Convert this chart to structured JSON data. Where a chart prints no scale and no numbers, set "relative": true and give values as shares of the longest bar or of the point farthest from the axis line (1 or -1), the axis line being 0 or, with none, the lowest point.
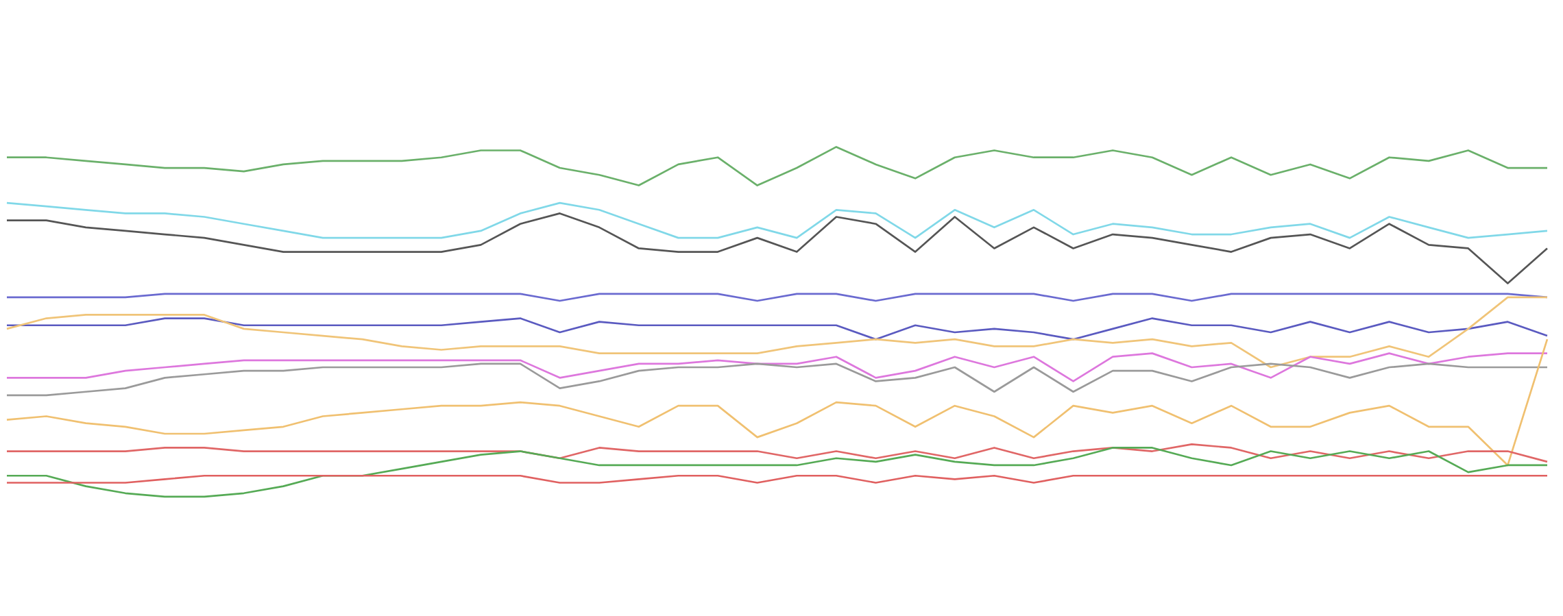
{
  "chart_data": {
    "type": "line",
    "relative": true,
    "categories": [
      null,
      null,
      null,
      null,
      null,
      null,
      null,
      null,
      null,
      null,
      null,
      null,
      null,
      null,
      null,
      null,
      null,
      null,
      null,
      null,
      null,
      null,
      null,
      null,
      null,
      null,
      null,
      null,
      null,
      null,
      null,
      null,
      null,
      null,
      null,
      null,
      null,
      null,
      null,
      null
    ],
    "series": [
      {
        "color": "#6ab06a",
        "values": [
          0.97,
          0.97,
          0.96,
          0.95,
          0.94,
          0.94,
          0.93,
          0.95,
          0.96,
          0.96,
          0.96,
          0.97,
          0.99,
          0.99,
          0.94,
          0.92,
          0.89,
          0.95,
          0.97,
          0.89,
          0.94,
          1.0,
          0.95,
          0.91,
          0.97,
          0.99,
          0.97,
          0.97,
          0.99,
          0.97,
          0.92,
          0.97,
          0.92,
          0.95,
          0.91,
          0.97,
          0.96,
          0.99,
          0.94,
          0.94
        ]
      },
      {
        "color": "#80d8e8",
        "values": [
          0.84,
          0.83,
          0.82,
          0.81,
          0.81,
          0.8,
          0.78,
          0.76,
          0.74,
          0.74,
          0.74,
          0.74,
          0.76,
          0.81,
          0.84,
          0.82,
          0.78,
          0.74,
          0.74,
          0.77,
          0.74,
          0.82,
          0.81,
          0.74,
          0.82,
          0.77,
          0.82,
          0.75,
          0.78,
          0.77,
          0.75,
          0.75,
          0.77,
          0.78,
          0.74,
          0.8,
          0.77,
          0.74,
          0.75,
          0.76
        ]
      },
      {
        "color": "#555555",
        "values": [
          0.79,
          0.79,
          0.77,
          0.76,
          0.75,
          0.74,
          0.72,
          0.7,
          0.7,
          0.7,
          0.7,
          0.7,
          0.72,
          0.78,
          0.81,
          0.77,
          0.71,
          0.7,
          0.7,
          0.74,
          0.7,
          0.8,
          0.78,
          0.7,
          0.8,
          0.71,
          0.77,
          0.71,
          0.75,
          0.74,
          0.72,
          0.7,
          0.74,
          0.75,
          0.71,
          0.78,
          0.72,
          0.71,
          0.61,
          0.71
        ]
      },
      {
        "color": "#6a6ad0",
        "values": [
          0.57,
          0.57,
          0.57,
          0.57,
          0.58,
          0.58,
          0.58,
          0.58,
          0.58,
          0.58,
          0.58,
          0.58,
          0.58,
          0.58,
          0.56,
          0.58,
          0.58,
          0.58,
          0.58,
          0.56,
          0.58,
          0.58,
          0.56,
          0.58,
          0.58,
          0.58,
          0.58,
          0.56,
          0.58,
          0.58,
          0.56,
          0.58,
          0.58,
          0.58,
          0.58,
          0.58,
          0.58,
          0.58,
          0.58,
          0.57
        ]
      },
      {
        "color": "#5a5ac0",
        "values": [
          0.49,
          0.49,
          0.49,
          0.49,
          0.51,
          0.51,
          0.49,
          0.49,
          0.49,
          0.49,
          0.49,
          0.49,
          0.5,
          0.51,
          0.47,
          0.5,
          0.49,
          0.49,
          0.49,
          0.49,
          0.49,
          0.49,
          0.45,
          0.49,
          0.47,
          0.48,
          0.47,
          0.45,
          0.48,
          0.51,
          0.49,
          0.49,
          0.47,
          0.5,
          0.47,
          0.5,
          0.47,
          0.48,
          0.5,
          0.46
        ]
      },
      {
        "color": "#f0c478",
        "values": [
          0.48,
          0.51,
          0.52,
          0.52,
          0.52,
          0.52,
          0.48,
          0.47,
          0.46,
          0.45,
          0.43,
          0.42,
          0.43,
          0.43,
          0.43,
          0.41,
          0.41,
          0.41,
          0.41,
          0.41,
          0.43,
          0.44,
          0.45,
          0.44,
          0.45,
          0.43,
          0.43,
          0.45,
          0.44,
          0.45,
          0.43,
          0.44,
          0.37,
          0.4,
          0.4,
          0.43,
          0.4,
          0.48,
          0.57,
          0.57
        ]
      },
      {
        "color": "#dd77dd",
        "values": [
          0.34,
          0.34,
          0.34,
          0.36,
          0.37,
          0.38,
          0.39,
          0.39,
          0.39,
          0.39,
          0.39,
          0.39,
          0.39,
          0.39,
          0.34,
          0.36,
          0.38,
          0.38,
          0.39,
          0.38,
          0.38,
          0.4,
          0.34,
          0.36,
          0.4,
          0.37,
          0.4,
          0.33,
          0.4,
          0.41,
          0.37,
          0.38,
          0.34,
          0.4,
          0.38,
          0.41,
          0.38,
          0.4,
          0.41,
          0.41
        ]
      },
      {
        "color": "#9a9a9a",
        "values": [
          0.29,
          0.29,
          0.3,
          0.31,
          0.34,
          0.35,
          0.36,
          0.36,
          0.37,
          0.37,
          0.37,
          0.37,
          0.38,
          0.38,
          0.31,
          0.33,
          0.36,
          0.37,
          0.37,
          0.38,
          0.37,
          0.38,
          0.33,
          0.34,
          0.37,
          0.3,
          0.37,
          0.3,
          0.36,
          0.36,
          0.33,
          0.37,
          0.38,
          0.37,
          0.34,
          0.37,
          0.38,
          0.37,
          0.37,
          0.37
        ]
      },
      {
        "color": "#f0c070",
        "values": [
          0.22,
          0.23,
          0.21,
          0.2,
          0.18,
          0.18,
          0.19,
          0.2,
          0.23,
          0.24,
          0.25,
          0.26,
          0.26,
          0.27,
          0.26,
          0.23,
          0.2,
          0.26,
          0.26,
          0.17,
          0.21,
          0.27,
          0.26,
          0.2,
          0.26,
          0.23,
          0.17,
          0.26,
          0.24,
          0.26,
          0.21,
          0.26,
          0.2,
          0.2,
          0.24,
          0.26,
          0.2,
          0.2,
          0.09,
          0.45
        ]
      },
      {
        "color": "#e06666",
        "values": [
          0.13,
          0.13,
          0.13,
          0.13,
          0.14,
          0.14,
          0.13,
          0.13,
          0.13,
          0.13,
          0.13,
          0.13,
          0.13,
          0.13,
          0.11,
          0.14,
          0.13,
          0.13,
          0.13,
          0.13,
          0.11,
          0.13,
          0.11,
          0.13,
          0.11,
          0.14,
          0.11,
          0.13,
          0.14,
          0.13,
          0.15,
          0.14,
          0.11,
          0.13,
          0.11,
          0.13,
          0.11,
          0.13,
          0.13,
          0.1
        ]
      },
      {
        "color": "#55aa55",
        "values": [
          0.06,
          0.06,
          0.03,
          0.01,
          0,
          0,
          0.01,
          0.03,
          0.06,
          0.06,
          0.08,
          0.1,
          0.12,
          0.13,
          0.11,
          0.09,
          0.09,
          0.09,
          0.09,
          0.09,
          0.09,
          0.11,
          0.1,
          0.12,
          0.1,
          0.09,
          0.09,
          0.11,
          0.14,
          0.14,
          0.11,
          0.09,
          0.13,
          0.11,
          0.13,
          0.11,
          0.13,
          0.07,
          0.09,
          0.09
        ]
      },
      {
        "color": "#e06060",
        "values": [
          0.04,
          0.04,
          0.04,
          0.04,
          0.05,
          0.06,
          0.06,
          0.06,
          0.06,
          0.06,
          0.06,
          0.06,
          0.06,
          0.06,
          0.04,
          0.04,
          0.05,
          0.06,
          0.06,
          0.04,
          0.06,
          0.06,
          0.04,
          0.06,
          0.05,
          0.06,
          0.04,
          0.06,
          0.06,
          0.06,
          0.06,
          0.06,
          0.06,
          0.06,
          0.06,
          0.06,
          0.06,
          0.06,
          0.06,
          0.06
        ]
      }
    ]
  }
}
